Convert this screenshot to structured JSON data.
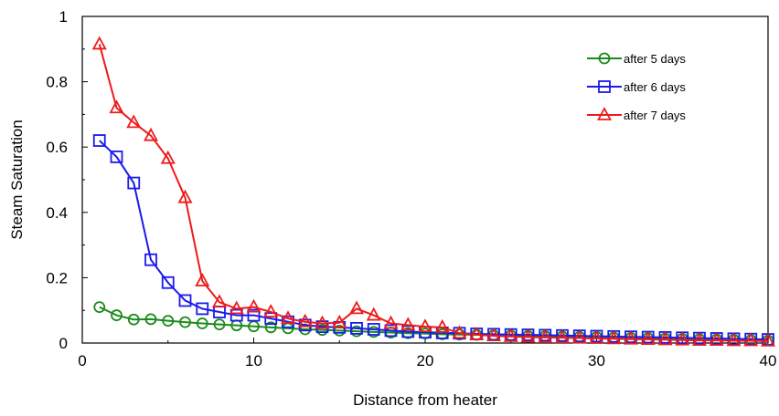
{
  "chart_data": {
    "type": "line",
    "title": "",
    "xlabel": "Distance from heater",
    "ylabel": "Steam Saturation",
    "xlim": [
      0,
      40
    ],
    "ylim": [
      0,
      1
    ],
    "x_ticks": [
      0,
      10,
      20,
      30,
      40
    ],
    "x_tick_labels": [
      "0",
      "10",
      "20",
      "30",
      "40"
    ],
    "y_ticks": [
      0,
      0.2,
      0.4,
      0.6,
      0.8,
      1
    ],
    "y_tick_labels": [
      "0",
      "0.2",
      "0.4",
      "0.6",
      "0.8",
      "1"
    ],
    "grid": false,
    "legend_position": "top-right",
    "x": [
      1,
      2,
      3,
      4,
      5,
      6,
      7,
      8,
      9,
      10,
      11,
      12,
      13,
      14,
      15,
      16,
      17,
      18,
      19,
      20,
      21,
      22,
      23,
      24,
      25,
      26,
      27,
      28,
      29,
      30,
      31,
      32,
      33,
      34,
      35,
      36,
      37,
      38,
      39,
      40
    ],
    "series": [
      {
        "name": "after 5 days",
        "color": "#1a8a1a",
        "marker": "circle",
        "values": [
          0.11,
          0.085,
          0.072,
          0.073,
          0.068,
          0.064,
          0.06,
          0.057,
          0.054,
          0.051,
          0.048,
          0.045,
          0.042,
          0.04,
          0.038,
          0.036,
          0.034,
          0.032,
          0.03,
          0.029,
          0.027,
          0.026,
          0.025,
          0.024,
          0.023,
          0.022,
          0.021,
          0.02,
          0.019,
          0.018,
          0.017,
          0.016,
          0.015,
          0.014,
          0.013,
          0.012,
          0.011,
          0.01,
          0.009,
          0.008
        ]
      },
      {
        "name": "after 6 days",
        "color": "#1a1aee",
        "marker": "square",
        "values": [
          0.62,
          0.57,
          0.49,
          0.255,
          0.185,
          0.13,
          0.105,
          0.095,
          0.085,
          0.085,
          0.075,
          0.065,
          0.055,
          0.05,
          0.048,
          0.045,
          0.042,
          0.038,
          0.035,
          0.033,
          0.031,
          0.03,
          0.028,
          0.027,
          0.026,
          0.025,
          0.024,
          0.023,
          0.022,
          0.021,
          0.02,
          0.019,
          0.018,
          0.017,
          0.016,
          0.015,
          0.014,
          0.013,
          0.012,
          0.011
        ]
      },
      {
        "name": "after 7 days",
        "color": "#ee1a1a",
        "marker": "triangle",
        "values": [
          0.915,
          0.72,
          0.675,
          0.635,
          0.565,
          0.445,
          0.19,
          0.125,
          0.105,
          0.11,
          0.095,
          0.075,
          0.065,
          0.06,
          0.062,
          0.105,
          0.085,
          0.06,
          0.055,
          0.05,
          0.048,
          0.03,
          0.025,
          0.022,
          0.02,
          0.018,
          0.017,
          0.016,
          0.015,
          0.014,
          0.013,
          0.012,
          0.011,
          0.01,
          0.009,
          0.008,
          0.008,
          0.007,
          0.007,
          0.006
        ]
      }
    ]
  }
}
